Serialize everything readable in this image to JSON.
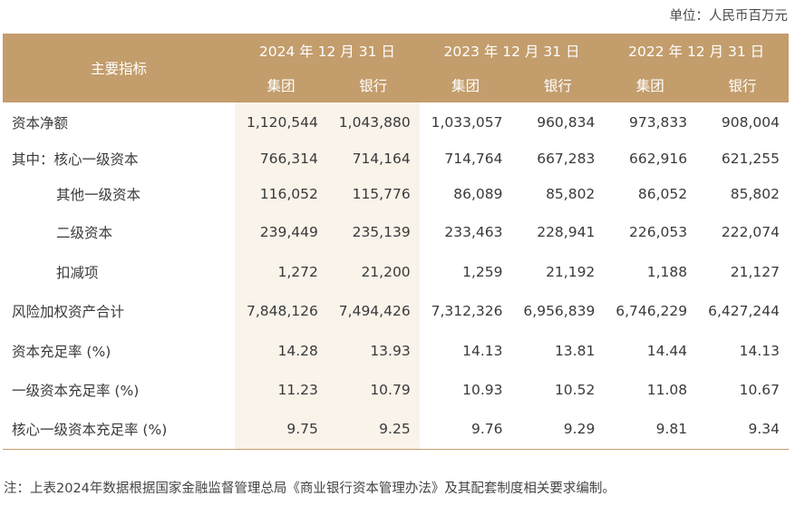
{
  "unit_label": "单位：人民币百万元",
  "header": {
    "main_label": "主要指标",
    "years": [
      "2024 年 12 月 31 日",
      "2023 年 12 月 31 日",
      "2022 年 12 月 31 日"
    ],
    "sub": [
      "集团",
      "银行",
      "集团",
      "银行",
      "集团",
      "银行"
    ]
  },
  "rows": [
    {
      "label": "资本净额",
      "values": [
        "1,120,544",
        "1,043,880",
        "1,033,057",
        "960,834",
        "973,833",
        "908,004"
      ]
    },
    {
      "label": "其中：核心一级资本",
      "values": [
        "766,314",
        "714,164",
        "714,764",
        "667,283",
        "662,916",
        "621,255"
      ]
    },
    {
      "label": "其他一级资本",
      "values": [
        "116,052",
        "115,776",
        "86,089",
        "85,802",
        "86,052",
        "85,802"
      ]
    },
    {
      "label": "二级资本",
      "values": [
        "239,449",
        "235,139",
        "233,463",
        "228,941",
        "226,053",
        "222,074"
      ]
    },
    {
      "label": "扣减项",
      "values": [
        "1,272",
        "21,200",
        "1,259",
        "21,192",
        "1,188",
        "21,127"
      ]
    },
    {
      "label": "风险加权资产合计",
      "values": [
        "7,848,126",
        "7,494,426",
        "7,312,326",
        "6,956,839",
        "6,746,229",
        "6,427,244"
      ]
    },
    {
      "label": "资本充足率 (%)",
      "values": [
        "14.28",
        "13.93",
        "14.13",
        "13.81",
        "14.44",
        "14.13"
      ]
    },
    {
      "label": "一级资本充足率 (%)",
      "values": [
        "11.23",
        "10.79",
        "10.93",
        "10.52",
        "11.08",
        "10.67"
      ]
    },
    {
      "label": "核心一级资本充足率 (%)",
      "values": [
        "9.75",
        "9.25",
        "9.76",
        "9.29",
        "9.81",
        "9.34"
      ]
    }
  ],
  "note": "注：上表2024年数据根据国家金融监督管理总局《商业银行资本管理办法》及其配套制度相关要求编制。",
  "colors": {
    "header_bg": "#c39d6c",
    "highlight_bg": "#f9f3ea"
  }
}
